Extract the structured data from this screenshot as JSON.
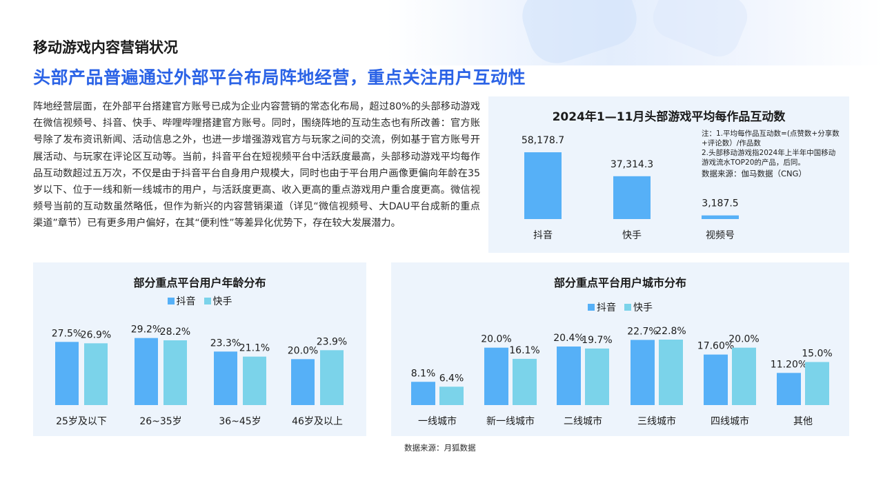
{
  "section_title": "移动游戏内容营销状况",
  "headline": "头部产品普遍通过外部平台布局阵地经营，重点关注用户互动性",
  "body_text": "阵地经营层面，在外部平台搭建官方账号已成为企业内容营销的常态化布局，超过80%的头部移动游戏在微信视频号、抖音、快手、哔哩哔哩搭建官方账号。同时，围绕阵地的互动生态也有所改善：官方账号除了发布资讯新闻、活动信息之外，也进一步增强游戏官方与玩家之间的交流，例如基于官方账号开展活动、与玩家在评论区互动等。当前，抖音平台在短视频平台中活跃度最高，头部移动游戏平均每作品互动数超过五万次，不仅是由于抖音平台自身用户规模大，同时也由于平台用户画像更偏向年龄在35岁以下、位于一线和新一线城市的用户，与活跃度更高、收入更高的重点游戏用户重合度更高。微信视频号当前的互动数虽然略低，但作为新兴的内容营销渠道（详见“微信视频号、大DAU平台成新的重点渠道”章节）已有更多用户偏好，在其“便利性”等差异化优势下，存在较大发展潜力。",
  "colors": {
    "primary": "#56b0f7",
    "secondary": "#7bd3ea",
    "headline": "#2b63e6",
    "panel": "#edf4fc"
  },
  "interaction_notes": {
    "note1": "注：1.平均每作品互动数=(点赞数+分享数+评论数）/作品数",
    "note2": "2.头部移动游戏指2024年上半年中国移动游戏流水TOP20的产品，后同。",
    "source": "数据来源：伽马数据（CNG）"
  },
  "footer_source": "数据来源：月狐数据",
  "chart_data": [
    {
      "type": "bar",
      "title": "2024年1—11月头部游戏平均每作品互动数",
      "categories": [
        "抖音",
        "快手",
        "视频号"
      ],
      "values": [
        58178.7,
        37314.3,
        3187.5
      ],
      "value_labels": [
        "58,178.7",
        "37,314.3",
        "3,187.5"
      ],
      "ylim": [
        0,
        60000
      ],
      "grid": false,
      "legend": "none"
    },
    {
      "type": "bar",
      "title": "部分重点平台用户年龄分布",
      "categories": [
        "25岁及以下",
        "26~35岁",
        "36~45岁",
        "46岁及以上"
      ],
      "series": [
        {
          "name": "抖音",
          "values": [
            27.5,
            29.2,
            23.3,
            20.0
          ],
          "labels": [
            "27.5%",
            "29.2%",
            "23.3%",
            "20.0%"
          ]
        },
        {
          "name": "快手",
          "values": [
            26.9,
            28.2,
            21.1,
            23.9
          ],
          "labels": [
            "26.9%",
            "28.2%",
            "21.1%",
            "23.9%"
          ]
        }
      ],
      "unit": "%",
      "ylim": [
        0,
        30
      ],
      "grid": false,
      "legend": "top-center"
    },
    {
      "type": "bar",
      "title": "部分重点平台用户城市分布",
      "categories": [
        "一线城市",
        "新一线城市",
        "二线城市",
        "三线城市",
        "四线城市",
        "其他"
      ],
      "series": [
        {
          "name": "抖音",
          "values": [
            8.1,
            20.0,
            20.4,
            22.7,
            17.6,
            11.2
          ],
          "labels": [
            "8.1%",
            "20.0%",
            "20.4%",
            "22.7%",
            "17.60%",
            "11.20%"
          ]
        },
        {
          "name": "快手",
          "values": [
            6.4,
            16.1,
            19.7,
            22.8,
            20.0,
            15.0
          ],
          "labels": [
            "6.4%",
            "16.1%",
            "19.7%",
            "22.8%",
            "20.0%",
            "15.0%"
          ]
        }
      ],
      "unit": "%",
      "ylim": [
        0,
        24
      ],
      "grid": false,
      "legend": "top-center"
    }
  ]
}
